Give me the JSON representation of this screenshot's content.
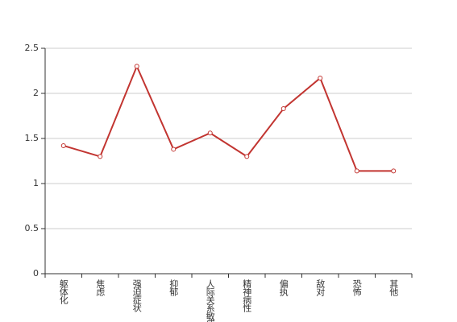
{
  "chart_data": {
    "type": "line",
    "categories": [
      "躯体化",
      "焦虑",
      "强迫症状",
      "抑郁",
      "人际关系敏感",
      "精神病性",
      "偏执",
      "敌对",
      "恐怖",
      "其他"
    ],
    "values": [
      1.42,
      1.3,
      2.3,
      1.38,
      1.56,
      1.3,
      1.83,
      2.17,
      1.14,
      1.14
    ],
    "color": "#c23531",
    "ylim": [
      0,
      2.5
    ],
    "yticks": [
      0,
      0.5,
      1,
      1.5,
      2,
      2.5
    ],
    "grid": true
  }
}
